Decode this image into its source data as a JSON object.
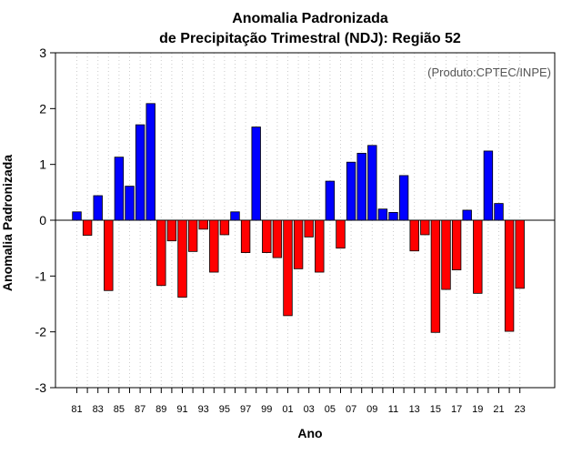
{
  "chart_data": {
    "type": "bar",
    "title": "Anomalia Padronizada",
    "subtitle": "de Precipitação Trimestral (NDJ): Região 52",
    "xlabel": "Ano",
    "ylabel": "Anomalia Padronizada",
    "credit": "(Produto:CPTEC/INPE)",
    "ylim": [
      -3,
      3
    ],
    "yticks": [
      "-3",
      "-2",
      "-1",
      "0",
      "1",
      "2",
      "3"
    ],
    "grid": "vertical-dotted",
    "xtick_labels": [
      "81",
      "83",
      "85",
      "87",
      "89",
      "91",
      "93",
      "95",
      "97",
      "99",
      "01",
      "03",
      "05",
      "07",
      "09",
      "11",
      "13",
      "15",
      "17",
      "19",
      "21",
      "23"
    ],
    "categories": [
      "1981",
      "1982",
      "1983",
      "1984",
      "1985",
      "1986",
      "1987",
      "1988",
      "1989",
      "1990",
      "1991",
      "1992",
      "1993",
      "1994",
      "1995",
      "1996",
      "1997",
      "1998",
      "1999",
      "2000",
      "2001",
      "2002",
      "2003",
      "2004",
      "2005",
      "2006",
      "2007",
      "2008",
      "2009",
      "2010",
      "2011",
      "2012",
      "2013",
      "2014",
      "2015",
      "2016",
      "2017",
      "2018",
      "2019",
      "2020",
      "2021",
      "2022",
      "2023"
    ],
    "values": [
      0.15,
      -0.27,
      0.44,
      -1.26,
      1.13,
      0.61,
      1.71,
      2.09,
      -1.17,
      -0.37,
      -1.38,
      -0.56,
      -0.16,
      -0.93,
      -0.26,
      0.15,
      -0.58,
      1.67,
      -0.58,
      -0.67,
      -1.71,
      -0.87,
      -0.3,
      -0.93,
      0.7,
      -0.5,
      1.04,
      1.2,
      1.34,
      0.2,
      0.14,
      0.8,
      -0.55,
      -0.26,
      -2.01,
      -1.24,
      -0.89,
      0.18,
      -1.31,
      1.24,
      0.3,
      -1.99,
      -1.22
    ],
    "colors": {
      "positive": "#0000ff",
      "negative": "#ff0000",
      "border": "#000000",
      "grid": "#cccccc"
    }
  }
}
